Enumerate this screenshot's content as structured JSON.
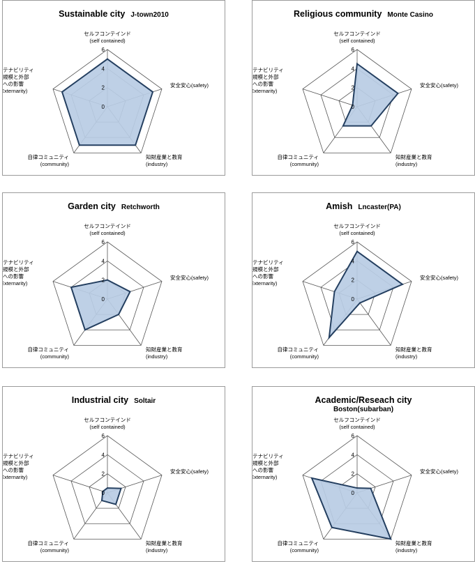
{
  "chart_data": [
    {
      "type": "radar",
      "title": "Sustainable city",
      "subtitle": "J-town2010",
      "axes": [
        {
          "label": "セルフコンテインド",
          "sub": "(self contained)"
        },
        {
          "label": "安全安心(safety)",
          "sub": ""
        },
        {
          "label": "知財産業と教育",
          "sub": "(industry)"
        },
        {
          "label": "自律コミュニティ",
          "sub": "(community)"
        },
        {
          "label": "サステナビリティ\nの規模と外部\nへの影響",
          "sub": "(Externarity)"
        }
      ],
      "ticks": [
        "0",
        "2",
        "4",
        "6"
      ],
      "rlim": [
        0,
        6
      ],
      "values": [
        5,
        5,
        5,
        5,
        5
      ],
      "fill": "#b8cce4",
      "stroke": "#243f60"
    },
    {
      "type": "radar",
      "title": "Religious community",
      "subtitle": "Monte Casino",
      "axes": [
        {
          "label": "セルフコンテインド",
          "sub": "(self contained)"
        },
        {
          "label": "安全安心(safety)",
          "sub": ""
        },
        {
          "label": "知財産業と教育",
          "sub": "(industry)"
        },
        {
          "label": "自律コミュニティ",
          "sub": "(community)"
        },
        {
          "label": "サステナビリティ\nの規模と外部\nへの影響",
          "sub": "(Externarity)"
        }
      ],
      "ticks": [
        "0",
        "2",
        "4",
        "6"
      ],
      "rlim": [
        0,
        6
      ],
      "values": [
        4.5,
        4.5,
        2.5,
        2.5,
        0.5
      ],
      "fill": "#b8cce4",
      "stroke": "#243f60"
    },
    {
      "type": "radar",
      "title": "Garden city",
      "subtitle": "Retchworth",
      "axes": [
        {
          "label": "セルフコンテインド",
          "sub": "(self contained)"
        },
        {
          "label": "安全安心(safety)",
          "sub": ""
        },
        {
          "label": "知財産業と教育",
          "sub": "(industry)"
        },
        {
          "label": "自律コミュニティ",
          "sub": "(community)"
        },
        {
          "label": "サステナビリティ\nの規模と外部\nへの影響",
          "sub": "(Externarity)"
        }
      ],
      "ticks": [
        "0",
        "2",
        "4",
        "6"
      ],
      "rlim": [
        0,
        6
      ],
      "values": [
        2,
        2.5,
        2,
        4,
        4
      ],
      "fill": "#b8cce4",
      "stroke": "#243f60"
    },
    {
      "type": "radar",
      "title": "Amish",
      "subtitle": "Lncaster(PA)",
      "axes": [
        {
          "label": "セルフコンテインド",
          "sub": "(self contained)"
        },
        {
          "label": "安全安心(safety)",
          "sub": ""
        },
        {
          "label": "知財産業と教育",
          "sub": "(industry)"
        },
        {
          "label": "自律コミュニティ",
          "sub": "(community)"
        },
        {
          "label": "サステナビリティ\nの規模と外部\nへの影響",
          "sub": "(Externarity)"
        }
      ],
      "ticks": [
        "0",
        "2",
        "4",
        "6"
      ],
      "rlim": [
        0,
        6
      ],
      "values": [
        5,
        5,
        0.5,
        5,
        2.5
      ],
      "fill": "#b8cce4",
      "stroke": "#243f60"
    },
    {
      "type": "radar",
      "title": "Industrial city",
      "subtitle": "Soltair",
      "axes": [
        {
          "label": "セルフコンテインド",
          "sub": "(self contained)"
        },
        {
          "label": "安全安心(safety)",
          "sub": ""
        },
        {
          "label": "知財産業と教育",
          "sub": "(industry)"
        },
        {
          "label": "自律コミュニティ",
          "sub": "(community)"
        },
        {
          "label": "サステナビリティ\nの規模と外部\nへの影響",
          "sub": "(Externarity)"
        }
      ],
      "ticks": [
        "0",
        "2",
        "4",
        "6"
      ],
      "rlim": [
        0,
        6
      ],
      "values": [
        0.5,
        1.5,
        1.5,
        1,
        0.5
      ],
      "fill": "#b8cce4",
      "stroke": "#243f60"
    },
    {
      "type": "radar",
      "title": "Academic/Reseach city",
      "subtitle": "Boston(subarban)",
      "axes": [
        {
          "label": "セルフコンテインド",
          "sub": "(self contained)"
        },
        {
          "label": "安全安心(safety)",
          "sub": ""
        },
        {
          "label": "知財産業と教育",
          "sub": "(industry)"
        },
        {
          "label": "自律コミュニティ",
          "sub": "(community)"
        },
        {
          "label": "サステナビリティ\nの規模と外部\nへの影響",
          "sub": "(Externarity)"
        }
      ],
      "ticks": [
        "0",
        "2",
        "4",
        "6"
      ],
      "rlim": [
        0,
        6
      ],
      "values": [
        0.5,
        1.5,
        6,
        4.5,
        5
      ],
      "fill": "#b8cce4",
      "stroke": "#243f60"
    }
  ]
}
